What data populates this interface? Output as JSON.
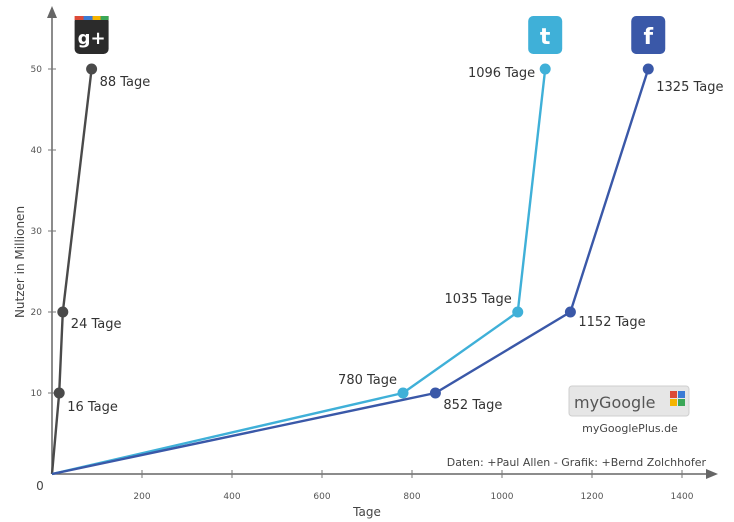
{
  "chart_data": {
    "type": "line",
    "xlabel": "Tage",
    "ylabel": "Nutzer in Millionen",
    "xlim": [
      0,
      1450
    ],
    "ylim": [
      0,
      55
    ],
    "x_ticks": [
      0,
      200,
      400,
      600,
      800,
      1000,
      1200,
      1400
    ],
    "y_ticks": [
      10,
      20,
      30,
      40,
      50
    ],
    "grid": false,
    "series": [
      {
        "name": "Google+",
        "color": "#4a4a4a",
        "icon": "google-plus-icon",
        "icon_text": "g+",
        "points": [
          {
            "x": 0,
            "y": 0,
            "label": ""
          },
          {
            "x": 16,
            "y": 10,
            "label": "16 Tage"
          },
          {
            "x": 24,
            "y": 20,
            "label": "24 Tage"
          },
          {
            "x": 88,
            "y": 50,
            "label": "88 Tage"
          }
        ]
      },
      {
        "name": "Twitter",
        "color": "#3fb0d8",
        "icon": "twitter-icon",
        "icon_text": "t",
        "points": [
          {
            "x": 0,
            "y": 0,
            "label": ""
          },
          {
            "x": 780,
            "y": 10,
            "label": "780 Tage"
          },
          {
            "x": 1035,
            "y": 20,
            "label": "1035 Tage"
          },
          {
            "x": 1096,
            "y": 50,
            "label": "1096 Tage"
          }
        ]
      },
      {
        "name": "Facebook",
        "color": "#3a58a8",
        "icon": "facebook-icon",
        "icon_text": "f",
        "points": [
          {
            "x": 0,
            "y": 0,
            "label": ""
          },
          {
            "x": 852,
            "y": 10,
            "label": "852 Tage"
          },
          {
            "x": 1152,
            "y": 20,
            "label": "1152 Tage"
          },
          {
            "x": 1325,
            "y": 50,
            "label": "1325 Tage"
          }
        ]
      }
    ],
    "annotations": {
      "credit": "Daten: +Paul Allen - Grafik: +Bernd Zolchhofer",
      "logo_text": "myGoogle",
      "logo_url": "myGooglePlus.de"
    }
  }
}
